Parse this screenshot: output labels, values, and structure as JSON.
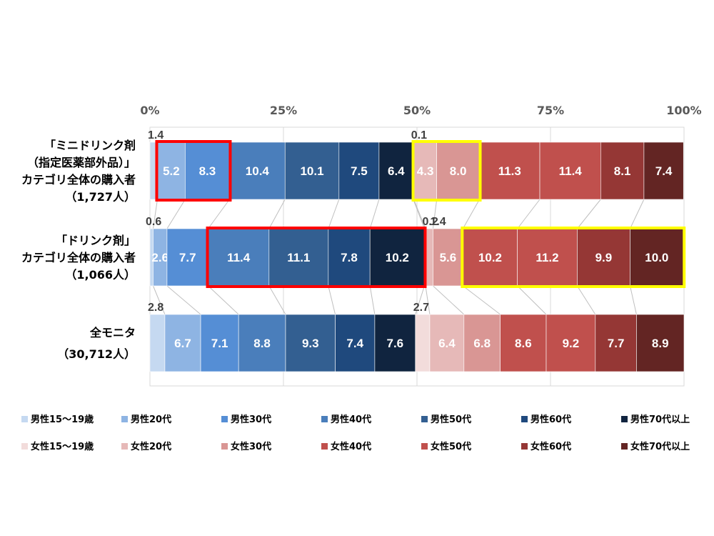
{
  "chart_data": {
    "type": "bar",
    "orientation": "horizontal",
    "stacked": "percent",
    "xlim": [
      0,
      100
    ],
    "x_ticks": [
      "0%",
      "25%",
      "50%",
      "75%",
      "100%"
    ],
    "grid": true,
    "legend_position": "bottom",
    "series": [
      {
        "name": "男性15～19歳",
        "color": "#c5d9f1",
        "values": [
          1.4,
          0.6,
          2.8
        ]
      },
      {
        "name": "男性20代",
        "color": "#8eb4e3",
        "values": [
          5.2,
          2.6,
          6.7
        ]
      },
      {
        "name": "男性30代",
        "color": "#558ed5",
        "values": [
          8.3,
          7.7,
          7.1
        ]
      },
      {
        "name": "男性40代",
        "color": "#4a7ebb",
        "values": [
          10.4,
          11.4,
          8.8
        ]
      },
      {
        "name": "男性50代",
        "color": "#335f91",
        "values": [
          10.1,
          11.1,
          9.3
        ]
      },
      {
        "name": "男性60代",
        "color": "#1f497d",
        "values": [
          7.5,
          7.8,
          7.4
        ]
      },
      {
        "name": "男性70代以上",
        "color": "#10243f",
        "values": [
          6.4,
          10.2,
          7.6
        ]
      },
      {
        "name": "女性15～19歳",
        "color": "#f2dcdb",
        "values": [
          0.1,
          0.2,
          2.7
        ]
      },
      {
        "name": "女性20代",
        "color": "#e6b9b8",
        "values": [
          4.3,
          1.4,
          6.4
        ]
      },
      {
        "name": "女性30代",
        "color": "#d99694",
        "values": [
          8.0,
          5.6,
          6.8
        ]
      },
      {
        "name": "女性40代",
        "color": "#c0504d",
        "values": [
          11.3,
          10.2,
          8.6
        ]
      },
      {
        "name": "女性50代",
        "color": "#c0504d",
        "values": [
          11.4,
          11.2,
          9.2
        ]
      },
      {
        "name": "女性60代",
        "color": "#953735",
        "values": [
          8.1,
          9.9,
          7.7
        ]
      },
      {
        "name": "女性70代以上",
        "color": "#632523",
        "values": [
          7.4,
          10.0,
          8.9
        ]
      }
    ],
    "categories": [
      {
        "lines": [
          "「ミニドリンク剤",
          "（指定医薬部外品）」",
          "カテゴリ全体の購入者",
          "（1,727人）"
        ]
      },
      {
        "lines": [
          "「ドリンク剤」",
          "カテゴリ全体の購入者",
          "（1,066人）"
        ]
      },
      {
        "lines": [
          "全モニタ",
          "（30,712人）"
        ]
      }
    ],
    "external_labels": [
      {
        "category": 0,
        "series": [
          0,
          7
        ]
      },
      {
        "category": 1,
        "series": [
          0,
          7,
          8
        ]
      },
      {
        "category": 2,
        "series": [
          0,
          7
        ]
      }
    ],
    "highlights": [
      {
        "category": 0,
        "from_series": 1,
        "to_series": 2,
        "color": "#ff0000"
      },
      {
        "category": 0,
        "from_series": 8,
        "to_series": 9,
        "color": "#ffff00"
      },
      {
        "category": 1,
        "from_series": 3,
        "to_series": 6,
        "color": "#ff0000"
      },
      {
        "category": 1,
        "from_series": 10,
        "to_series": 13,
        "color": "#ffff00"
      }
    ]
  }
}
